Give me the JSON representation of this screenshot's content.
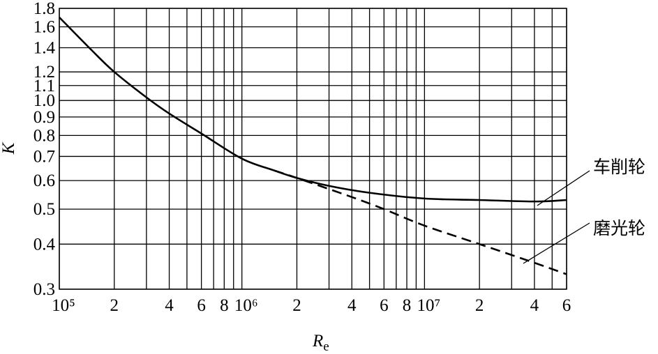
{
  "chart_data": {
    "type": "line",
    "xlabel": {
      "main": "R",
      "sub": "e"
    },
    "ylabel": "K",
    "xscale": "log",
    "yscale": "log",
    "xlim": [
      100000,
      60000000
    ],
    "ylim": [
      0.3,
      1.8
    ],
    "xticks": [
      {
        "value": 100000,
        "label": "10⁵"
      },
      200000,
      400000,
      600000,
      800000,
      {
        "value": 1000000,
        "label": "10⁶"
      },
      2000000,
      4000000,
      6000000,
      8000000,
      {
        "value": 10000000,
        "label": "10⁷"
      },
      20000000,
      40000000,
      60000000
    ],
    "xtick_labels": [
      "10⁵",
      "2",
      "4",
      "6",
      "8",
      "10⁶",
      "2",
      "4",
      "6",
      "8",
      "10⁷",
      "2",
      "4",
      "6"
    ],
    "xminorgrid": [
      300000,
      500000,
      700000,
      900000,
      3000000,
      5000000,
      7000000,
      9000000,
      30000000,
      50000000
    ],
    "yticks": [
      0.3,
      0.4,
      0.5,
      0.6,
      0.7,
      0.8,
      0.9,
      {
        "value": 1.0,
        "label": "1.0"
      },
      1.1,
      1.2,
      1.4,
      1.6,
      1.8
    ],
    "grid": true,
    "series": [
      {
        "name": "车削轮",
        "color": "#000000",
        "dash": false,
        "x": [
          100000,
          150000,
          200000,
          300000,
          400000,
          600000,
          1000000,
          1500000,
          2000000,
          3000000,
          5000000,
          10000000,
          20000000,
          40000000,
          60000000
        ],
        "values": [
          1.7,
          1.38,
          1.2,
          1.02,
          0.92,
          0.81,
          0.69,
          0.64,
          0.61,
          0.58,
          0.555,
          0.535,
          0.53,
          0.525,
          0.53
        ]
      },
      {
        "name": "磨光轮",
        "color": "#000000",
        "dash": true,
        "x": [
          1500000,
          2000000,
          4000000,
          6000000,
          10000000,
          20000000,
          40000000,
          60000000
        ],
        "values": [
          0.64,
          0.61,
          0.54,
          0.5,
          0.45,
          0.4,
          0.355,
          0.33
        ]
      }
    ]
  }
}
